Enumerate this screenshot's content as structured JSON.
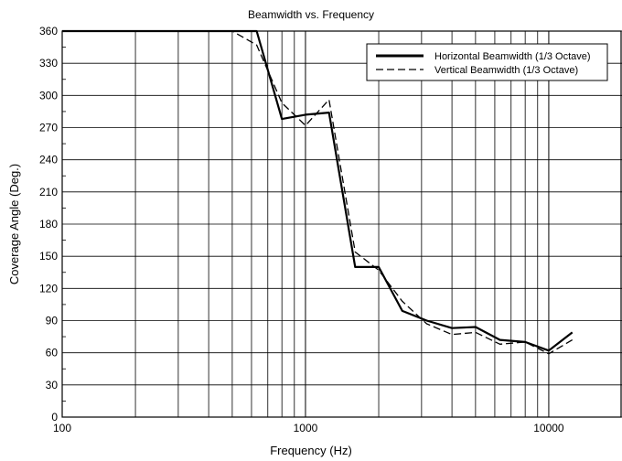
{
  "chart_data": {
    "type": "line",
    "title": "Beamwidth vs. Frequency",
    "xlabel": "Frequency (Hz)",
    "ylabel": "Coverage Angle (Deg.)",
    "x_scale": "log",
    "xlim": [
      100,
      20000
    ],
    "ylim": [
      0,
      360
    ],
    "x_ticks": [
      100,
      1000,
      10000
    ],
    "x_tick_labels": [
      "100",
      "1000",
      "10000"
    ],
    "y_ticks": [
      0,
      30,
      60,
      90,
      120,
      150,
      180,
      210,
      240,
      270,
      300,
      330,
      360
    ],
    "y_tick_labels": [
      "0",
      "30",
      "60",
      "90",
      "120",
      "150",
      "180",
      "210",
      "240",
      "270",
      "300",
      "330",
      "360"
    ],
    "grid": true,
    "legend_position": "top-right",
    "series": [
      {
        "name": "Horizontal Beamwidth (1/3 Octave)",
        "style": "solid",
        "x": [
          100,
          125,
          160,
          200,
          250,
          315,
          400,
          500,
          630,
          800,
          1000,
          1250,
          1600,
          2000,
          2500,
          3150,
          4000,
          5000,
          6300,
          8000,
          10000,
          12500
        ],
        "y": [
          360,
          360,
          360,
          360,
          360,
          360,
          360,
          360,
          360,
          278,
          282,
          284,
          140,
          140,
          99,
          90,
          83,
          84,
          72,
          70,
          62,
          79
        ]
      },
      {
        "name": "Vertical Beamwidth (1/3 Octave)",
        "style": "dashed",
        "x": [
          100,
          125,
          160,
          200,
          250,
          315,
          400,
          500,
          630,
          800,
          1000,
          1250,
          1600,
          2000,
          2500,
          3150,
          4000,
          5000,
          6300,
          8000,
          10000,
          12500
        ],
        "y": [
          360,
          360,
          360,
          360,
          360,
          360,
          360,
          360,
          347,
          293,
          272,
          296,
          154,
          137,
          108,
          87,
          77,
          79,
          68,
          70,
          59,
          72
        ]
      }
    ]
  }
}
